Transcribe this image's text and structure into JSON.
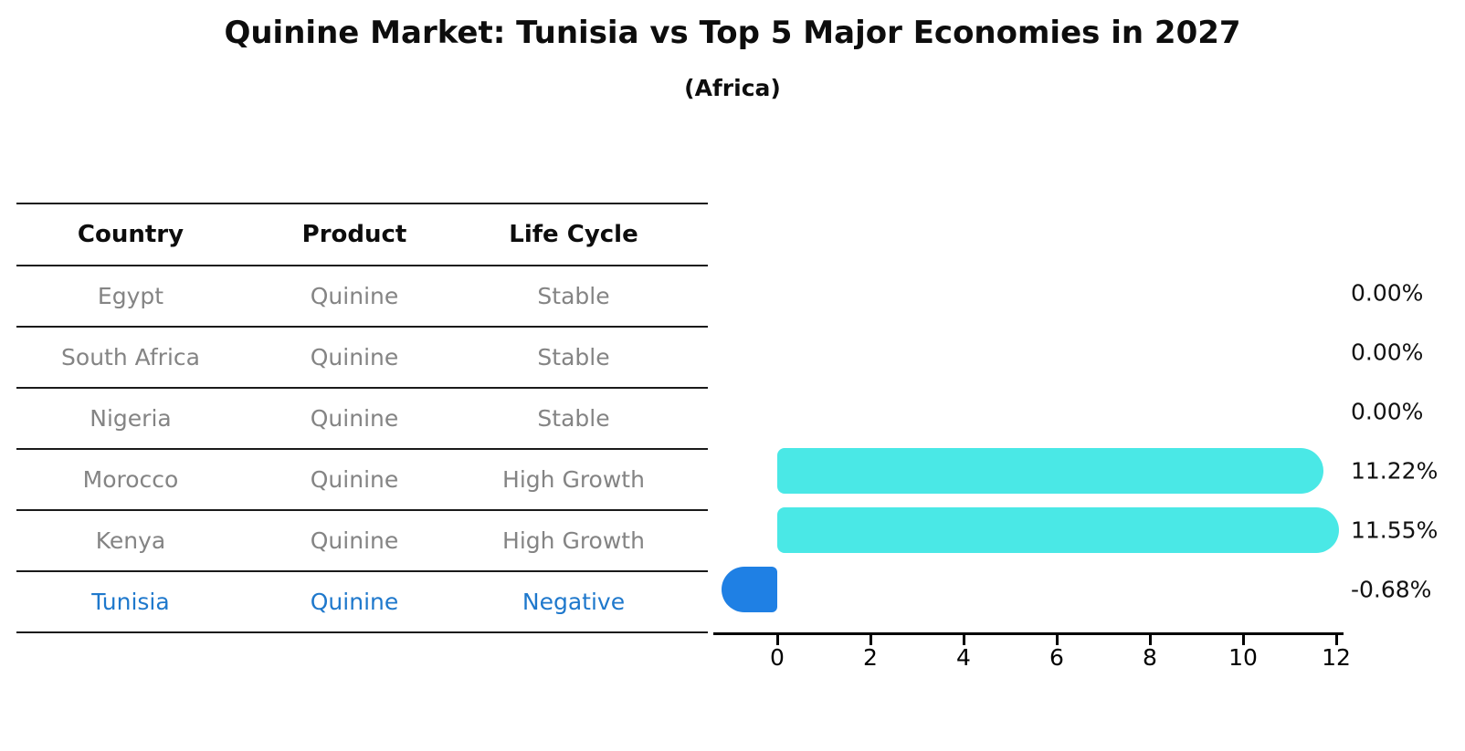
{
  "title": "Quinine Market: Tunisia vs Top 5 Major Economies in 2027",
  "subtitle": "(Africa)",
  "table": {
    "headers": [
      "Country",
      "Product",
      "Life Cycle"
    ],
    "rows": [
      {
        "country": "Egypt",
        "product": "Quinine",
        "life_cycle": "Stable",
        "highlight": false
      },
      {
        "country": "South Africa",
        "product": "Quinine",
        "life_cycle": "Stable",
        "highlight": false
      },
      {
        "country": "Nigeria",
        "product": "Quinine",
        "life_cycle": "Stable",
        "highlight": false
      },
      {
        "country": "Morocco",
        "product": "Quinine",
        "life_cycle": "High Growth",
        "highlight": false
      },
      {
        "country": "Kenya",
        "product": "Quinine",
        "life_cycle": "High Growth",
        "highlight": false
      },
      {
        "country": "Tunisia",
        "product": "Quinine",
        "life_cycle": "Negative",
        "highlight": true
      }
    ]
  },
  "chart_data": {
    "type": "bar",
    "orientation": "horizontal",
    "title": "Quinine Market: Tunisia vs Top 5 Major Economies in 2027",
    "subtitle": "(Africa)",
    "categories": [
      "Egypt",
      "South Africa",
      "Nigeria",
      "Morocco",
      "Kenya",
      "Tunisia"
    ],
    "values": [
      0.0,
      0.0,
      0.0,
      11.22,
      11.55,
      -0.68
    ],
    "value_labels": [
      "0.00%",
      "0.00%",
      "0.00%",
      "11.22%",
      "11.55%",
      "-0.68%"
    ],
    "x_ticks": [
      0,
      2,
      4,
      6,
      8,
      10,
      12
    ],
    "xlim": [
      -1.4,
      12.2
    ],
    "xlabel": "",
    "ylabel": "",
    "grid": false,
    "legend": false,
    "highlight_category": "Tunisia"
  },
  "colors": {
    "bar_positive": "#4ae8e6",
    "bar_negative": "#1f80e4",
    "highlight_text": "#1e78cc",
    "muted_text": "#848484",
    "axis": "#000000"
  }
}
